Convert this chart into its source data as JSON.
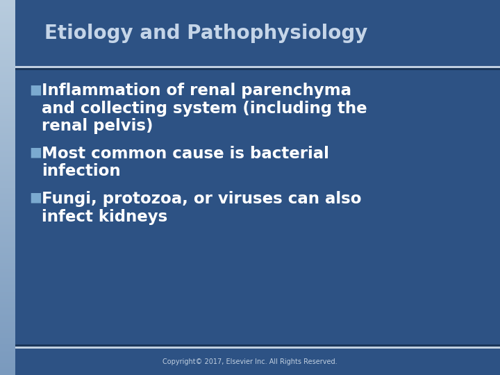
{
  "title": "Etiology and Pathophysiology",
  "title_color": "#c5d5e8",
  "title_fontsize": 20,
  "bg_color_main": "#2d5284",
  "separator_light": "#c0cfe0",
  "separator_dark": "#1a3558",
  "bullet_color": "#7baad0",
  "text_color": "#ffffff",
  "footer_color": "#c0cfe0",
  "bullet_char": "■",
  "bullet_points": [
    [
      "Inflammation of renal parenchyma",
      "and collecting system (including the",
      "renal pelvis)"
    ],
    [
      "Most common cause is bacterial",
      "infection"
    ],
    [
      "Fungi, protozoa, or viruses can also",
      "infect kidneys"
    ]
  ],
  "footer_text": "Copyright© 2017, Elsevier Inc. All Rights Reserved.",
  "content_fontsize": 16.5,
  "footer_fontsize": 7,
  "title_bar_height": 95,
  "footer_bar_height": 38,
  "left_bar_width": 22,
  "sep_thick_light": 3,
  "sep_thick_dark": 3
}
